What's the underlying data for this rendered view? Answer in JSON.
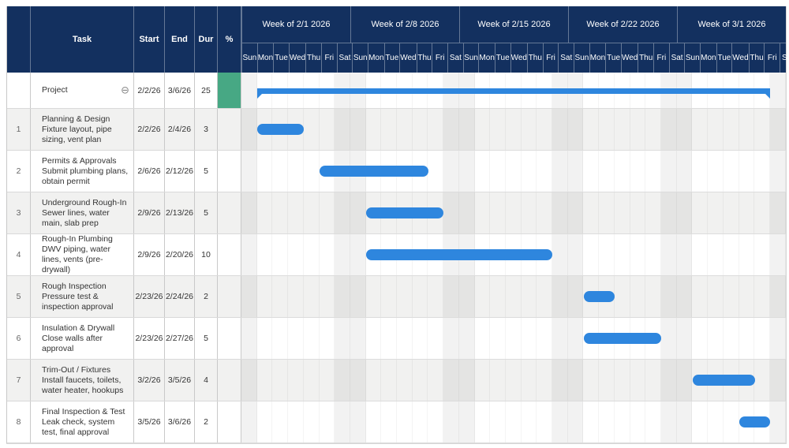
{
  "colors": {
    "header_navy": "#13305F",
    "bar_blue": "#2E86DE",
    "summary_pct_green": "#47A884",
    "alt_row_gray": "#F1F1F0"
  },
  "icons": {
    "collapse": "⊖"
  },
  "table": {
    "columns": [
      "",
      "Task",
      "Start",
      "End",
      "Dur",
      "%"
    ]
  },
  "timeline": {
    "day_names": [
      "Sun",
      "Mon",
      "Tue",
      "Wed",
      "Thu",
      "Fri",
      "Sat"
    ],
    "weeks": [
      "Week of 2/1 2026",
      "Week of 2/8 2026",
      "Week of 2/15 2026",
      "Week of 2/22 2026",
      "Week of 3/1 2026"
    ]
  },
  "chart_data": {
    "type": "gantt",
    "title": "",
    "x_axis": "Calendar days from Sun 2/1/2026 through Sat 3/7/2026 (5 weeks, 7 day columns each)",
    "notes": "bar_start_day / bar_end_day are inclusive day offsets from Sun 2/1/2026 = 0; weekends (Sat/Sun) shaded; Project summary row % cell is solid green",
    "tasks": [
      {
        "num": "",
        "name": "Project",
        "detail": "",
        "start": "2/2/26",
        "end": "3/6/26",
        "dur": "25",
        "pct": "",
        "summary": true,
        "bar_start_day": 1,
        "bar_end_day": 33
      },
      {
        "num": "1",
        "name": "Planning & Design",
        "detail": "Fixture layout, pipe sizing, vent plan",
        "start": "2/2/26",
        "end": "2/4/26",
        "dur": "3",
        "pct": "",
        "summary": false,
        "bar_start_day": 1,
        "bar_end_day": 3
      },
      {
        "num": "2",
        "name": "Permits & Approvals",
        "detail": "Submit plumbing plans, obtain permit",
        "start": "2/6/26",
        "end": "2/12/26",
        "dur": "5",
        "pct": "",
        "summary": false,
        "bar_start_day": 5,
        "bar_end_day": 11
      },
      {
        "num": "3",
        "name": "Underground Rough-In",
        "detail": "Sewer lines, water main, slab prep",
        "start": "2/9/26",
        "end": "2/13/26",
        "dur": "5",
        "pct": "",
        "summary": false,
        "bar_start_day": 8,
        "bar_end_day": 12
      },
      {
        "num": "4",
        "name": "Rough-In Plumbing",
        "detail": "DWV piping, water lines, vents (pre-drywall)",
        "start": "2/9/26",
        "end": "2/20/26",
        "dur": "10",
        "pct": "",
        "summary": false,
        "bar_start_day": 8,
        "bar_end_day": 19
      },
      {
        "num": "5",
        "name": "Rough Inspection",
        "detail": "Pressure test & inspection approval",
        "start": "2/23/26",
        "end": "2/24/26",
        "dur": "2",
        "pct": "",
        "summary": false,
        "bar_start_day": 22,
        "bar_end_day": 23
      },
      {
        "num": "6",
        "name": "Insulation & Drywall",
        "detail": "Close walls after approval",
        "start": "2/23/26",
        "end": "2/27/26",
        "dur": "5",
        "pct": "",
        "summary": false,
        "bar_start_day": 22,
        "bar_end_day": 26
      },
      {
        "num": "7",
        "name": "Trim-Out / Fixtures",
        "detail": "Install faucets, toilets, water heater, hookups",
        "start": "3/2/26",
        "end": "3/5/26",
        "dur": "4",
        "pct": "",
        "summary": false,
        "bar_start_day": 29,
        "bar_end_day": 32
      },
      {
        "num": "8",
        "name": "Final Inspection & Test",
        "detail": "Leak check, system test, final approval",
        "start": "3/5/26",
        "end": "3/6/26",
        "dur": "2",
        "pct": "",
        "summary": false,
        "bar_start_day": 32,
        "bar_end_day": 33
      }
    ]
  }
}
